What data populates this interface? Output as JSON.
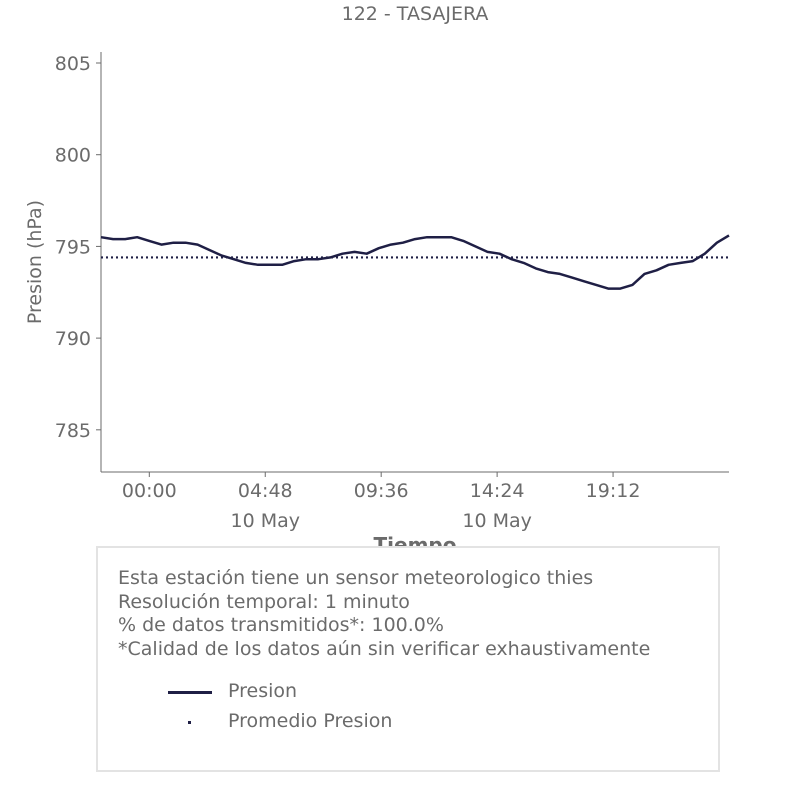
{
  "chart_data": {
    "type": "line",
    "title": "122 - TASAJERA",
    "xlabel": "Tiempo",
    "ylabel": "Presion (hPa)",
    "x_start": "2024-05-09T22:00",
    "x_end": "2024-05-11T00:00",
    "x_ticks": [
      {
        "time": "2024-05-10T00:00",
        "label": "00:00",
        "sublabel": ""
      },
      {
        "time": "2024-05-10T04:48",
        "label": "04:48",
        "sublabel": "10 May"
      },
      {
        "time": "2024-05-10T09:36",
        "label": "09:36",
        "sublabel": ""
      },
      {
        "time": "2024-05-10T14:24",
        "label": "14:24",
        "sublabel": "10 May"
      },
      {
        "time": "2024-05-10T19:12",
        "label": "19:12",
        "sublabel": ""
      }
    ],
    "y_ticks": [
      785,
      790,
      795,
      800,
      805
    ],
    "ylim": [
      782.7,
      805.6
    ],
    "grid": false,
    "colors": {
      "series": "#1f1f45",
      "text": "#6b6b6b",
      "box_border": "#e3e3e3"
    },
    "series": [
      {
        "name": "Presion",
        "style": "line",
        "x": [
          "2024-05-09T22:00",
          "2024-05-09T22:30",
          "2024-05-09T23:00",
          "2024-05-09T23:30",
          "2024-05-10T00:00",
          "2024-05-10T00:30",
          "2024-05-10T01:00",
          "2024-05-10T01:30",
          "2024-05-10T02:00",
          "2024-05-10T02:30",
          "2024-05-10T03:00",
          "2024-05-10T03:30",
          "2024-05-10T04:00",
          "2024-05-10T04:30",
          "2024-05-10T05:00",
          "2024-05-10T05:30",
          "2024-05-10T06:00",
          "2024-05-10T06:30",
          "2024-05-10T07:00",
          "2024-05-10T07:30",
          "2024-05-10T08:00",
          "2024-05-10T08:30",
          "2024-05-10T09:00",
          "2024-05-10T09:30",
          "2024-05-10T10:00",
          "2024-05-10T10:30",
          "2024-05-10T11:00",
          "2024-05-10T11:30",
          "2024-05-10T12:00",
          "2024-05-10T12:30",
          "2024-05-10T13:00",
          "2024-05-10T13:30",
          "2024-05-10T14:00",
          "2024-05-10T14:30",
          "2024-05-10T15:00",
          "2024-05-10T15:30",
          "2024-05-10T16:00",
          "2024-05-10T16:30",
          "2024-05-10T17:00",
          "2024-05-10T17:30",
          "2024-05-10T18:00",
          "2024-05-10T18:30",
          "2024-05-10T19:00",
          "2024-05-10T19:30",
          "2024-05-10T20:00",
          "2024-05-10T20:30",
          "2024-05-10T21:00",
          "2024-05-10T21:30",
          "2024-05-10T22:00",
          "2024-05-10T22:30",
          "2024-05-10T23:00",
          "2024-05-10T23:30",
          "2024-05-11T00:00"
        ],
        "values": [
          795.5,
          795.4,
          795.4,
          795.5,
          795.3,
          795.1,
          795.2,
          795.2,
          795.1,
          794.8,
          794.5,
          794.3,
          794.1,
          794.0,
          794.0,
          794.0,
          794.2,
          794.3,
          794.3,
          794.4,
          794.6,
          794.7,
          794.6,
          794.9,
          795.1,
          795.2,
          795.4,
          795.5,
          795.5,
          795.5,
          795.3,
          795.0,
          794.7,
          794.6,
          794.3,
          794.1,
          793.8,
          793.6,
          793.5,
          793.3,
          793.1,
          792.9,
          792.7,
          792.7,
          792.9,
          793.5,
          793.7,
          794.0,
          794.1,
          794.2,
          794.6,
          795.2,
          795.6
        ]
      },
      {
        "name": "Promedio Presion",
        "style": "dotted",
        "value": 794.4
      }
    ]
  },
  "info": {
    "lines": [
      "Esta estación tiene un sensor meteorologico thies",
      "Resolución temporal: 1 minuto",
      "% de datos transmitidos*: 100.0%",
      "*Calidad de los datos aún sin verificar exhaustivamente"
    ],
    "legend": [
      {
        "label": "Presion",
        "marker": "line"
      },
      {
        "label": "Promedio Presion",
        "marker": "dot"
      }
    ]
  }
}
